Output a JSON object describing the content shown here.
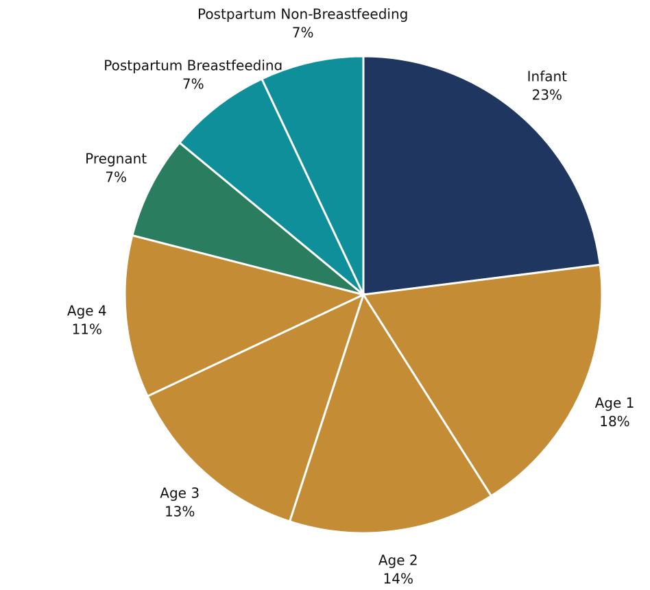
{
  "chart_data": {
    "type": "pie",
    "categories": [
      "Infant",
      "Age 1",
      "Age 2",
      "Age 3",
      "Age 4",
      "Pregnant",
      "Postpartum Breastfeeding",
      "Postpartum Non-Breastfeeding"
    ],
    "values": [
      23,
      18,
      14,
      13,
      11,
      7,
      7,
      7
    ],
    "value_labels": [
      "23%",
      "18%",
      "14%",
      "13%",
      "11%",
      "7%",
      "7%",
      "7%"
    ],
    "colors": [
      "#1f3660",
      "#c48c35",
      "#c48c35",
      "#c48c35",
      "#c48c35",
      "#2a7d5f",
      "#0e8f9a",
      "#0e8f9a"
    ]
  }
}
